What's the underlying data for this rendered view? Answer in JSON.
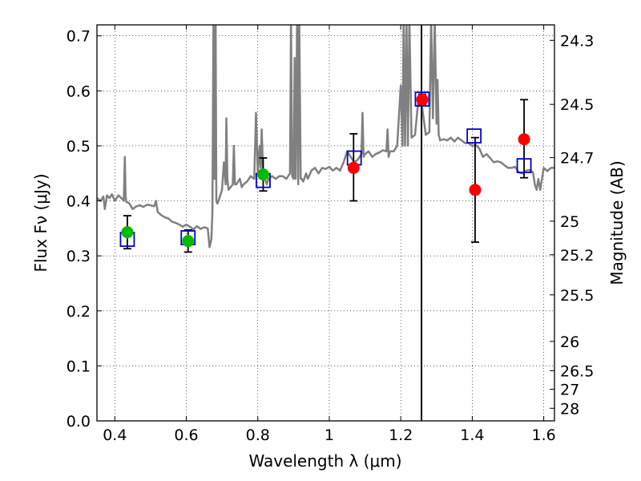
{
  "chart_data": {
    "type": "scatter",
    "xlabel": "Wavelength  λ (μm)",
    "ylabel": "Flux  Fν  (μJy)",
    "y2label": "Magnitude (AB)",
    "xlim": [
      0.35,
      1.63
    ],
    "ylim": [
      0.0,
      0.72
    ],
    "grid": true,
    "x_ticks": [
      {
        "value": 0.4,
        "label": "0.4"
      },
      {
        "value": 0.6,
        "label": "0.6"
      },
      {
        "value": 0.8,
        "label": "0.8"
      },
      {
        "value": 1.0,
        "label": "1"
      },
      {
        "value": 1.2,
        "label": "1.2"
      },
      {
        "value": 1.4,
        "label": "1.4"
      },
      {
        "value": 1.6,
        "label": "1.6"
      }
    ],
    "y_ticks": [
      {
        "value": 0.0,
        "label": "0.0"
      },
      {
        "value": 0.1,
        "label": "0.1"
      },
      {
        "value": 0.2,
        "label": "0.2"
      },
      {
        "value": 0.3,
        "label": "0.3"
      },
      {
        "value": 0.4,
        "label": "0.4"
      },
      {
        "value": 0.5,
        "label": "0.5"
      },
      {
        "value": 0.6,
        "label": "0.6"
      },
      {
        "value": 0.7,
        "label": "0.7"
      }
    ],
    "y2_ticks": [
      {
        "mag": 24.3,
        "label": "24.3"
      },
      {
        "mag": 24.5,
        "label": "24.5"
      },
      {
        "mag": 24.7,
        "label": "24.7"
      },
      {
        "mag": 25.0,
        "label": "25"
      },
      {
        "mag": 25.2,
        "label": "25.2"
      },
      {
        "mag": 25.5,
        "label": "25.5"
      },
      {
        "mag": 26.0,
        "label": "26"
      },
      {
        "mag": 26.5,
        "label": "26.5"
      },
      {
        "mag": 27.0,
        "label": "27"
      },
      {
        "mag": 28.0,
        "label": "28"
      }
    ],
    "vertical_line_x": 1.258,
    "colors": {
      "model": "#808080",
      "optical": "#00bb00",
      "nir": "#ff0000",
      "model_box": "#0000cc",
      "errorbar": "#000000",
      "vline": "#000000"
    },
    "model_spectrum": {
      "x": [
        0.35,
        0.36,
        0.368,
        0.372,
        0.378,
        0.385,
        0.392,
        0.4,
        0.41,
        0.42,
        0.425,
        0.428,
        0.43,
        0.432,
        0.44,
        0.45,
        0.46,
        0.47,
        0.48,
        0.49,
        0.5,
        0.51,
        0.515,
        0.52,
        0.53,
        0.54,
        0.55,
        0.56,
        0.57,
        0.58,
        0.59,
        0.6,
        0.61,
        0.62,
        0.63,
        0.64,
        0.65,
        0.66,
        0.665,
        0.67,
        0.673,
        0.676,
        0.679,
        0.682,
        0.684,
        0.687,
        0.69,
        0.7,
        0.705,
        0.71,
        0.712,
        0.715,
        0.718,
        0.73,
        0.733,
        0.736,
        0.74,
        0.75,
        0.755,
        0.76,
        0.77,
        0.78,
        0.79,
        0.795,
        0.8,
        0.805,
        0.808,
        0.811,
        0.815,
        0.82,
        0.825,
        0.83,
        0.84,
        0.85,
        0.86,
        0.87,
        0.88,
        0.89,
        0.893,
        0.896,
        0.9,
        0.903,
        0.906,
        0.91,
        0.913,
        0.916,
        0.92,
        0.923,
        0.927,
        0.93,
        0.935,
        0.94,
        0.95,
        0.96,
        0.97,
        0.98,
        0.99,
        1.0,
        1.01,
        1.02,
        1.03,
        1.04,
        1.05,
        1.06,
        1.07,
        1.08,
        1.09,
        1.093,
        1.096,
        1.1,
        1.11,
        1.12,
        1.13,
        1.14,
        1.15,
        1.16,
        1.163,
        1.166,
        1.17,
        1.18,
        1.19,
        1.2,
        1.205,
        1.208,
        1.212,
        1.216,
        1.22,
        1.224,
        1.23,
        1.24,
        1.25,
        1.26,
        1.27,
        1.28,
        1.285,
        1.29,
        1.295,
        1.3,
        1.303,
        1.306,
        1.31,
        1.32,
        1.33,
        1.34,
        1.35,
        1.36,
        1.37,
        1.38,
        1.39,
        1.4,
        1.41,
        1.42,
        1.43,
        1.44,
        1.45,
        1.46,
        1.47,
        1.48,
        1.49,
        1.5,
        1.51,
        1.52,
        1.53,
        1.54,
        1.55,
        1.56,
        1.57,
        1.575,
        1.58,
        1.585,
        1.59,
        1.6,
        1.61,
        1.62,
        1.63
      ],
      "y": [
        0.405,
        0.4,
        0.408,
        0.385,
        0.41,
        0.405,
        0.412,
        0.4,
        0.41,
        0.404,
        0.4,
        0.48,
        0.41,
        0.398,
        0.396,
        0.385,
        0.39,
        0.392,
        0.389,
        0.393,
        0.392,
        0.39,
        0.4,
        0.38,
        0.374,
        0.37,
        0.368,
        0.362,
        0.36,
        0.357,
        0.353,
        0.357,
        0.353,
        0.348,
        0.354,
        0.349,
        0.352,
        0.35,
        0.316,
        0.33,
        0.38,
        0.73,
        0.44,
        0.73,
        0.4,
        0.395,
        0.4,
        0.42,
        0.47,
        0.43,
        0.55,
        0.44,
        0.42,
        0.43,
        0.5,
        0.43,
        0.43,
        0.44,
        0.425,
        0.43,
        0.435,
        0.445,
        0.44,
        0.56,
        0.45,
        0.5,
        0.46,
        0.53,
        0.45,
        0.44,
        0.43,
        0.44,
        0.445,
        0.44,
        0.445,
        0.445,
        0.44,
        0.45,
        0.73,
        0.445,
        0.44,
        0.66,
        0.44,
        0.73,
        0.43,
        0.73,
        0.44,
        0.44,
        0.435,
        0.44,
        0.45,
        0.44,
        0.455,
        0.46,
        0.45,
        0.46,
        0.458,
        0.462,
        0.455,
        0.46,
        0.455,
        0.47,
        0.49,
        0.48,
        0.47,
        0.475,
        0.485,
        0.56,
        0.48,
        0.485,
        0.49,
        0.48,
        0.485,
        0.488,
        0.492,
        0.49,
        0.53,
        0.48,
        0.49,
        0.49,
        0.5,
        0.61,
        0.5,
        0.73,
        0.5,
        0.73,
        0.5,
        0.73,
        0.515,
        0.52,
        0.59,
        0.57,
        0.52,
        0.525,
        0.73,
        0.55,
        0.73,
        0.54,
        0.62,
        0.52,
        0.51,
        0.512,
        0.51,
        0.515,
        0.508,
        0.515,
        0.51,
        0.505,
        0.505,
        0.5,
        0.502,
        0.495,
        0.48,
        0.485,
        0.478,
        0.47,
        0.472,
        0.47,
        0.465,
        0.46,
        0.46,
        0.462,
        0.452,
        0.45,
        0.455,
        0.456,
        0.452,
        0.43,
        0.42,
        0.44,
        0.42,
        0.46,
        0.454,
        0.46,
        0.46
      ]
    },
    "series": [
      {
        "name": "",
        "marker": "circle",
        "color_key": "optical",
        "points": [
          {
            "x": 0.435,
            "y": 0.343,
            "err_low": 0.03,
            "err_high": 0.03
          },
          {
            "x": 0.605,
            "y": 0.327,
            "err_low": 0.02,
            "err_high": 0.02
          },
          {
            "x": 0.815,
            "y": 0.448,
            "err_low": 0.03,
            "err_high": 0.03
          }
        ]
      },
      {
        "name": "",
        "marker": "circle",
        "color_key": "nir",
        "points": [
          {
            "x": 1.068,
            "y": 0.46,
            "err_low": 0.06,
            "err_high": 0.062
          },
          {
            "x": 1.26,
            "y": 0.584,
            "err_low": 0.01,
            "err_high": 0.01
          },
          {
            "x": 1.408,
            "y": 0.42,
            "err_low": 0.095,
            "err_high": 0.095
          },
          {
            "x": 1.545,
            "y": 0.512,
            "err_low": 0.07,
            "err_high": 0.072
          }
        ]
      },
      {
        "name": "",
        "marker": "square",
        "color_key": "model_box",
        "points": [
          {
            "x": 0.435,
            "y": 0.33
          },
          {
            "x": 0.605,
            "y": 0.333
          },
          {
            "x": 0.815,
            "y": 0.437
          },
          {
            "x": 1.07,
            "y": 0.478
          },
          {
            "x": 1.26,
            "y": 0.585
          },
          {
            "x": 1.405,
            "y": 0.518
          },
          {
            "x": 1.545,
            "y": 0.464
          }
        ]
      }
    ]
  }
}
